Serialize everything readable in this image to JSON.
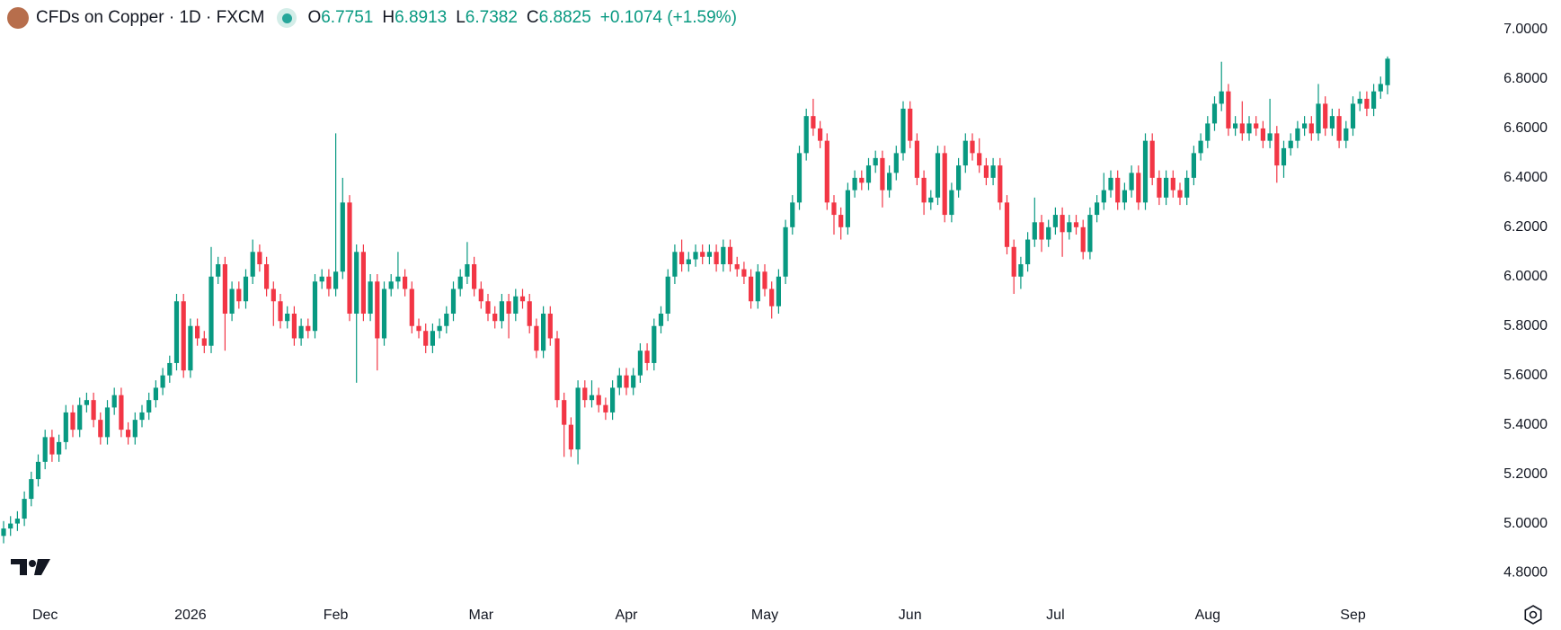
{
  "header": {
    "title": "CFDs on Copper · 1D · FXCM",
    "ohlc": [
      {
        "label": "O",
        "value": "6.7751"
      },
      {
        "label": "H",
        "value": "6.8913"
      },
      {
        "label": "L",
        "value": "6.7382"
      },
      {
        "label": "C",
        "value": "6.8825"
      }
    ],
    "change": "+0.1074 (+1.59%)"
  },
  "chart_data": {
    "type": "candlestick",
    "up_color": "#089981",
    "down_color": "#f23645",
    "ylim": [
      4.7,
      7.12
    ],
    "yticks": [
      {
        "value": 4.8,
        "label": "4.8000"
      },
      {
        "value": 5.0,
        "label": "5.0000"
      },
      {
        "value": 5.2,
        "label": "5.2000"
      },
      {
        "value": 5.4,
        "label": "5.4000"
      },
      {
        "value": 5.6,
        "label": "5.6000"
      },
      {
        "value": 5.8,
        "label": "5.8000"
      },
      {
        "value": 6.0,
        "label": "6.0000"
      },
      {
        "value": 6.2,
        "label": "6.2000"
      },
      {
        "value": 6.4,
        "label": "6.4000"
      },
      {
        "value": 6.6,
        "label": "6.6000"
      },
      {
        "value": 6.8,
        "label": "6.8000"
      },
      {
        "value": 7.0,
        "label": "7.0000"
      }
    ],
    "xticks": [
      {
        "value": 6,
        "label": "Dec"
      },
      {
        "value": 27,
        "label": "2026"
      },
      {
        "value": 48,
        "label": "Feb"
      },
      {
        "value": 69,
        "label": "Mar"
      },
      {
        "value": 90,
        "label": "Apr"
      },
      {
        "value": 110,
        "label": "May"
      },
      {
        "value": 131,
        "label": "Jun"
      },
      {
        "value": 152,
        "label": "Jul"
      },
      {
        "value": 174,
        "label": "Aug"
      },
      {
        "value": 195,
        "label": "Sep"
      }
    ],
    "open": [
      4.95,
      4.98,
      5.0,
      5.02,
      5.1,
      5.18,
      5.25,
      5.35,
      5.28,
      5.33,
      5.45,
      5.38,
      5.48,
      5.5,
      5.42,
      5.35,
      5.47,
      5.52,
      5.38,
      5.35,
      5.42,
      5.45,
      5.5,
      5.55,
      5.6,
      5.65,
      5.9,
      5.62,
      5.8,
      5.75,
      5.72,
      6.0,
      6.05,
      5.85,
      5.95,
      5.9,
      6.0,
      6.1,
      6.05,
      5.95,
      5.9,
      5.82,
      5.85,
      5.75,
      5.8,
      5.78,
      5.98,
      6.0,
      5.95,
      6.02,
      6.3,
      5.85,
      6.1,
      5.85,
      5.98,
      5.75,
      5.95,
      5.98,
      6.0,
      5.95,
      5.8,
      5.78,
      5.72,
      5.78,
      5.8,
      5.85,
      5.95,
      6.0,
      6.05,
      5.95,
      5.9,
      5.85,
      5.82,
      5.9,
      5.85,
      5.92,
      5.9,
      5.8,
      5.7,
      5.85,
      5.75,
      5.5,
      5.4,
      5.3,
      5.55,
      5.5,
      5.52,
      5.48,
      5.45,
      5.55,
      5.6,
      5.55,
      5.6,
      5.7,
      5.65,
      5.8,
      5.85,
      6.0,
      6.1,
      6.05,
      6.07,
      6.1,
      6.08,
      6.1,
      6.05,
      6.12,
      6.05,
      6.03,
      6.0,
      5.9,
      6.02,
      5.95,
      5.88,
      6.0,
      6.2,
      6.3,
      6.5,
      6.65,
      6.6,
      6.55,
      6.3,
      6.25,
      6.2,
      6.35,
      6.4,
      6.38,
      6.45,
      6.48,
      6.35,
      6.42,
      6.5,
      6.68,
      6.55,
      6.4,
      6.3,
      6.32,
      6.5,
      6.25,
      6.35,
      6.45,
      6.55,
      6.5,
      6.45,
      6.4,
      6.45,
      6.3,
      6.12,
      6.0,
      6.05,
      6.15,
      6.22,
      6.15,
      6.2,
      6.25,
      6.18,
      6.22,
      6.2,
      6.1,
      6.25,
      6.3,
      6.35,
      6.4,
      6.3,
      6.35,
      6.42,
      6.3,
      6.55,
      6.4,
      6.32,
      6.4,
      6.35,
      6.32,
      6.4,
      6.5,
      6.55,
      6.62,
      6.7,
      6.75,
      6.6,
      6.62,
      6.58,
      6.62,
      6.6,
      6.55,
      6.58,
      6.45,
      6.52,
      6.55,
      6.6,
      6.62,
      6.58,
      6.7,
      6.6,
      6.65,
      6.55,
      6.6,
      6.7,
      6.72,
      6.68,
      6.75,
      6.7751
    ],
    "high": [
      5.01,
      5.03,
      5.05,
      5.13,
      5.21,
      5.28,
      5.38,
      5.38,
      5.36,
      5.48,
      5.48,
      5.51,
      5.53,
      5.53,
      5.45,
      5.5,
      5.55,
      5.55,
      5.41,
      5.45,
      5.48,
      5.53,
      5.58,
      5.63,
      5.68,
      5.93,
      5.93,
      5.83,
      5.83,
      5.78,
      6.12,
      6.08,
      6.08,
      5.98,
      5.98,
      6.03,
      6.15,
      6.13,
      6.08,
      5.98,
      5.93,
      5.88,
      5.88,
      5.83,
      5.83,
      6.01,
      6.03,
      6.03,
      6.58,
      6.4,
      6.33,
      6.13,
      6.13,
      6.01,
      6.01,
      5.98,
      6.01,
      6.1,
      6.03,
      5.98,
      5.83,
      5.81,
      5.81,
      5.83,
      5.88,
      5.98,
      6.03,
      6.14,
      6.08,
      5.98,
      5.93,
      5.88,
      5.93,
      5.93,
      5.95,
      5.95,
      5.93,
      5.83,
      5.88,
      5.88,
      5.78,
      5.53,
      5.43,
      5.58,
      5.58,
      5.58,
      5.55,
      5.51,
      5.58,
      5.63,
      5.63,
      5.63,
      5.73,
      5.73,
      5.83,
      5.88,
      6.03,
      6.13,
      6.15,
      6.1,
      6.13,
      6.13,
      6.13,
      6.13,
      6.15,
      6.15,
      6.08,
      6.06,
      6.03,
      6.05,
      6.05,
      5.98,
      6.03,
      6.23,
      6.33,
      6.53,
      6.68,
      6.72,
      6.63,
      6.58,
      6.33,
      6.28,
      6.38,
      6.43,
      6.43,
      6.48,
      6.51,
      6.51,
      6.45,
      6.53,
      6.71,
      6.71,
      6.58,
      6.43,
      6.35,
      6.53,
      6.53,
      6.38,
      6.48,
      6.58,
      6.58,
      6.56,
      6.48,
      6.48,
      6.48,
      6.33,
      6.15,
      6.08,
      6.18,
      6.32,
      6.25,
      6.23,
      6.28,
      6.28,
      6.25,
      6.25,
      6.23,
      6.28,
      6.33,
      6.42,
      6.43,
      6.43,
      6.38,
      6.45,
      6.45,
      6.58,
      6.58,
      6.43,
      6.43,
      6.43,
      6.38,
      6.43,
      6.53,
      6.58,
      6.65,
      6.73,
      6.87,
      6.78,
      6.65,
      6.71,
      6.65,
      6.65,
      6.63,
      6.72,
      6.61,
      6.55,
      6.58,
      6.63,
      6.65,
      6.65,
      6.78,
      6.73,
      6.68,
      6.68,
      6.63,
      6.73,
      6.75,
      6.75,
      6.78,
      6.81,
      6.8913
    ],
    "low": [
      4.92,
      4.95,
      4.97,
      4.99,
      5.07,
      5.15,
      5.22,
      5.25,
      5.25,
      5.3,
      5.35,
      5.35,
      5.45,
      5.39,
      5.32,
      5.32,
      5.44,
      5.35,
      5.32,
      5.32,
      5.39,
      5.42,
      5.47,
      5.52,
      5.57,
      5.62,
      5.59,
      5.59,
      5.72,
      5.69,
      5.69,
      5.97,
      5.7,
      5.82,
      5.87,
      5.87,
      5.97,
      6.02,
      5.92,
      5.8,
      5.79,
      5.79,
      5.72,
      5.72,
      5.75,
      5.75,
      5.95,
      5.92,
      5.92,
      5.99,
      5.82,
      5.57,
      5.82,
      5.82,
      5.62,
      5.72,
      5.92,
      5.95,
      5.92,
      5.77,
      5.75,
      5.69,
      5.69,
      5.75,
      5.77,
      5.82,
      5.92,
      5.97,
      5.92,
      5.87,
      5.82,
      5.79,
      5.79,
      5.75,
      5.82,
      5.87,
      5.77,
      5.67,
      5.67,
      5.72,
      5.47,
      5.27,
      5.27,
      5.24,
      5.47,
      5.47,
      5.45,
      5.42,
      5.42,
      5.52,
      5.52,
      5.52,
      5.57,
      5.62,
      5.62,
      5.77,
      5.82,
      5.97,
      6.02,
      6.02,
      6.04,
      6.05,
      6.05,
      6.02,
      6.02,
      6.02,
      6.0,
      5.97,
      5.87,
      5.87,
      5.92,
      5.83,
      5.85,
      5.97,
      6.17,
      6.27,
      6.47,
      6.57,
      6.52,
      6.27,
      6.17,
      6.15,
      6.17,
      6.32,
      6.35,
      6.35,
      6.42,
      6.28,
      6.32,
      6.39,
      6.47,
      6.52,
      6.37,
      6.25,
      6.27,
      6.29,
      6.22,
      6.22,
      6.32,
      6.42,
      6.47,
      6.42,
      6.37,
      6.37,
      6.27,
      6.09,
      5.93,
      5.95,
      6.02,
      6.12,
      6.1,
      6.12,
      6.17,
      6.08,
      6.15,
      6.17,
      6.07,
      6.07,
      6.22,
      6.27,
      6.32,
      6.27,
      6.27,
      6.32,
      6.27,
      6.27,
      6.37,
      6.29,
      6.29,
      6.32,
      6.29,
      6.29,
      6.37,
      6.47,
      6.52,
      6.59,
      6.67,
      6.57,
      6.57,
      6.55,
      6.55,
      6.57,
      6.52,
      6.52,
      6.38,
      6.4,
      6.49,
      6.52,
      6.57,
      6.55,
      6.55,
      6.57,
      6.57,
      6.52,
      6.52,
      6.57,
      6.67,
      6.65,
      6.65,
      6.72,
      6.7382
    ],
    "close": [
      4.98,
      5.0,
      5.02,
      5.1,
      5.18,
      5.25,
      5.35,
      5.28,
      5.33,
      5.45,
      5.38,
      5.48,
      5.5,
      5.42,
      5.35,
      5.47,
      5.52,
      5.38,
      5.35,
      5.42,
      5.45,
      5.5,
      5.55,
      5.6,
      5.65,
      5.9,
      5.62,
      5.8,
      5.75,
      5.72,
      6.0,
      6.05,
      5.85,
      5.95,
      5.9,
      6.0,
      6.1,
      6.05,
      5.95,
      5.9,
      5.82,
      5.85,
      5.75,
      5.8,
      5.78,
      5.98,
      6.0,
      5.95,
      6.02,
      6.3,
      5.85,
      6.1,
      5.85,
      5.98,
      5.75,
      5.95,
      5.98,
      6.0,
      5.95,
      5.8,
      5.78,
      5.72,
      5.78,
      5.8,
      5.85,
      5.95,
      6.0,
      6.05,
      5.95,
      5.9,
      5.85,
      5.82,
      5.9,
      5.85,
      5.92,
      5.9,
      5.8,
      5.7,
      5.85,
      5.75,
      5.5,
      5.4,
      5.3,
      5.55,
      5.5,
      5.52,
      5.48,
      5.45,
      5.55,
      5.6,
      5.55,
      5.6,
      5.7,
      5.65,
      5.8,
      5.85,
      6.0,
      6.1,
      6.05,
      6.07,
      6.1,
      6.08,
      6.1,
      6.05,
      6.12,
      6.05,
      6.03,
      6.0,
      5.9,
      6.02,
      5.95,
      5.88,
      6.0,
      6.2,
      6.3,
      6.5,
      6.65,
      6.6,
      6.55,
      6.3,
      6.25,
      6.2,
      6.35,
      6.4,
      6.38,
      6.45,
      6.48,
      6.35,
      6.42,
      6.5,
      6.68,
      6.55,
      6.4,
      6.3,
      6.32,
      6.5,
      6.25,
      6.35,
      6.45,
      6.55,
      6.5,
      6.45,
      6.4,
      6.45,
      6.3,
      6.12,
      6.0,
      6.05,
      6.15,
      6.22,
      6.15,
      6.2,
      6.25,
      6.18,
      6.22,
      6.2,
      6.1,
      6.25,
      6.3,
      6.35,
      6.4,
      6.3,
      6.35,
      6.42,
      6.3,
      6.55,
      6.4,
      6.32,
      6.4,
      6.35,
      6.32,
      6.4,
      6.5,
      6.55,
      6.62,
      6.7,
      6.75,
      6.6,
      6.62,
      6.58,
      6.62,
      6.6,
      6.55,
      6.58,
      6.45,
      6.52,
      6.55,
      6.6,
      6.62,
      6.58,
      6.7,
      6.6,
      6.65,
      6.55,
      6.6,
      6.7,
      6.72,
      6.68,
      6.75,
      6.78,
      6.8825
    ]
  }
}
